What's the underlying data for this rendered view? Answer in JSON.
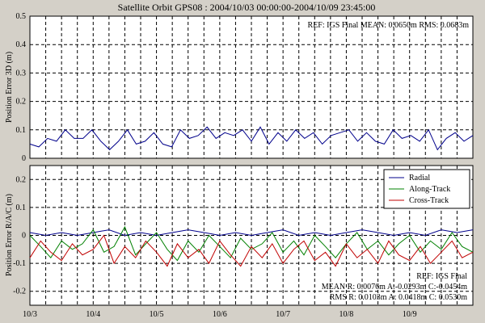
{
  "chart_data": [
    {
      "type": "line",
      "title": "Satellite Orbit GPS08 : 2004/10/03 00:00:00-2004/10/09 23:45:00",
      "xlabel": "",
      "ylabel": "Position Error 3D (m)",
      "xlim": [
        0,
        7
      ],
      "ylim": [
        0,
        0.5
      ],
      "yticks": [
        "0",
        "0.1",
        "0.2",
        "0.3",
        "0.4",
        "0.5"
      ],
      "xticks": [
        "10/3",
        "10/4",
        "10/5",
        "10/6",
        "10/7",
        "10/8",
        "10/9"
      ],
      "grid": true,
      "annotation": "REF: IGS Final  MEAN: 0.0650m RMS: 0.0683m",
      "series": [
        {
          "color": "#00008b",
          "x": [
            0.0,
            0.14,
            0.28,
            0.42,
            0.56,
            0.7,
            0.84,
            0.98,
            1.12,
            1.26,
            1.4,
            1.54,
            1.68,
            1.82,
            1.96,
            2.1,
            2.24,
            2.38,
            2.52,
            2.66,
            2.8,
            2.94,
            3.08,
            3.22,
            3.36,
            3.5,
            3.64,
            3.78,
            3.92,
            4.06,
            4.2,
            4.34,
            4.48,
            4.62,
            4.76,
            4.9,
            5.04,
            5.18,
            5.32,
            5.46,
            5.6,
            5.74,
            5.88,
            6.02,
            6.16,
            6.3,
            6.44,
            6.58,
            6.72,
            6.86,
            7.0
          ],
          "y": [
            0.05,
            0.04,
            0.07,
            0.06,
            0.1,
            0.07,
            0.07,
            0.1,
            0.06,
            0.03,
            0.06,
            0.1,
            0.05,
            0.06,
            0.09,
            0.05,
            0.04,
            0.1,
            0.07,
            0.08,
            0.11,
            0.07,
            0.09,
            0.08,
            0.1,
            0.06,
            0.11,
            0.05,
            0.09,
            0.06,
            0.1,
            0.07,
            0.09,
            0.05,
            0.08,
            0.09,
            0.1,
            0.06,
            0.09,
            0.06,
            0.05,
            0.1,
            0.07,
            0.08,
            0.06,
            0.1,
            0.03,
            0.07,
            0.09,
            0.06,
            0.08
          ]
        }
      ]
    },
    {
      "type": "line",
      "title": "",
      "xlabel": "",
      "ylabel": "Position Error R/A/C (m)",
      "xlim": [
        0,
        7
      ],
      "ylim": [
        -0.25,
        0.25
      ],
      "yticks": [
        "-0.2",
        "-0.1",
        "0",
        "0.1",
        "0.2"
      ],
      "xticks": [
        "10/3",
        "10/4",
        "10/5",
        "10/6",
        "10/7",
        "10/8",
        "10/9"
      ],
      "grid": true,
      "legend_position": "top-right",
      "annotations": [
        "REF: IGS Final",
        "MEAN R: 0.0076m A:-0.0293m C:-0.0454m",
        "RMS R: 0.0103m A: 0.0418m C: 0.0530m"
      ],
      "series": [
        {
          "name": "Radial",
          "color": "#00008b",
          "x": [
            0.0,
            0.25,
            0.5,
            0.75,
            1.0,
            1.25,
            1.5,
            1.75,
            2.0,
            2.25,
            2.5,
            2.75,
            3.0,
            3.25,
            3.5,
            3.75,
            4.0,
            4.25,
            4.5,
            4.75,
            5.0,
            5.25,
            5.5,
            5.75,
            6.0,
            6.25,
            6.5,
            6.75,
            7.0
          ],
          "y": [
            0.01,
            0.0,
            0.01,
            0.0,
            0.01,
            0.02,
            0.0,
            0.01,
            0.0,
            0.01,
            0.02,
            0.01,
            0.0,
            0.01,
            0.0,
            0.01,
            0.02,
            0.0,
            0.01,
            0.0,
            0.01,
            0.02,
            0.01,
            0.0,
            0.01,
            0.0,
            0.02,
            0.01,
            0.02
          ]
        },
        {
          "name": "Along-Track",
          "color": "#008000",
          "x": [
            0.0,
            0.17,
            0.33,
            0.5,
            0.67,
            0.83,
            1.0,
            1.17,
            1.33,
            1.5,
            1.67,
            1.83,
            2.0,
            2.17,
            2.33,
            2.5,
            2.67,
            2.83,
            3.0,
            3.17,
            3.33,
            3.5,
            3.67,
            3.83,
            4.0,
            4.17,
            4.33,
            4.5,
            4.67,
            4.83,
            5.0,
            5.17,
            5.33,
            5.5,
            5.67,
            5.83,
            6.0,
            6.17,
            6.33,
            6.5,
            6.67,
            6.83,
            7.0
          ],
          "y": [
            0.0,
            -0.04,
            -0.08,
            -0.02,
            -0.05,
            -0.03,
            0.02,
            -0.06,
            -0.04,
            0.03,
            -0.07,
            -0.03,
            0.01,
            -0.05,
            -0.09,
            -0.02,
            -0.06,
            0.0,
            -0.04,
            -0.08,
            -0.01,
            -0.05,
            -0.03,
            0.01,
            -0.06,
            -0.02,
            -0.07,
            0.0,
            -0.04,
            -0.08,
            -0.03,
            0.01,
            -0.05,
            -0.02,
            -0.07,
            -0.03,
            0.0,
            -0.06,
            -0.02,
            -0.05,
            0.01,
            -0.04,
            -0.06
          ]
        },
        {
          "name": "Cross-Track",
          "color": "#c00000",
          "x": [
            0.0,
            0.17,
            0.33,
            0.5,
            0.67,
            0.83,
            1.0,
            1.17,
            1.33,
            1.5,
            1.67,
            1.83,
            2.0,
            2.17,
            2.33,
            2.5,
            2.67,
            2.83,
            3.0,
            3.17,
            3.33,
            3.5,
            3.67,
            3.83,
            4.0,
            4.17,
            4.33,
            4.5,
            4.67,
            4.83,
            5.0,
            5.17,
            5.33,
            5.5,
            5.67,
            5.83,
            6.0,
            6.17,
            6.33,
            6.5,
            6.67,
            6.83,
            7.0
          ],
          "y": [
            -0.08,
            -0.02,
            -0.06,
            -0.09,
            -0.03,
            -0.07,
            -0.05,
            0.0,
            -0.1,
            -0.04,
            -0.08,
            -0.02,
            -0.06,
            -0.11,
            -0.03,
            -0.08,
            -0.05,
            -0.1,
            -0.02,
            -0.07,
            -0.11,
            -0.04,
            -0.08,
            -0.03,
            -0.1,
            -0.05,
            -0.02,
            -0.09,
            -0.06,
            -0.11,
            -0.03,
            -0.08,
            -0.05,
            -0.1,
            -0.02,
            -0.07,
            -0.09,
            -0.04,
            -0.1,
            -0.06,
            -0.02,
            -0.08,
            -0.06
          ]
        }
      ]
    }
  ]
}
